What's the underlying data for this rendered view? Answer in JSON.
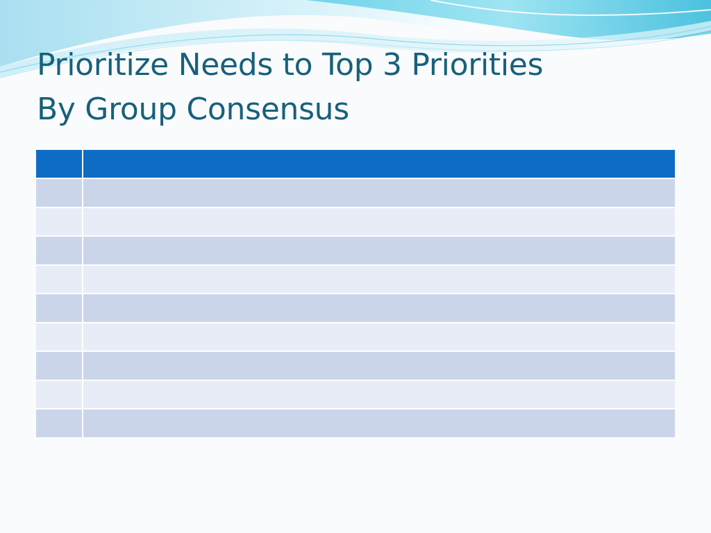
{
  "slide": {
    "title_line1": "Prioritize Needs to Top 3 Priorities",
    "title_line2": "By Group Consensus"
  },
  "table": {
    "columns": [
      "",
      ""
    ],
    "rows": [
      [
        "",
        ""
      ],
      [
        "",
        ""
      ],
      [
        "",
        ""
      ],
      [
        "",
        ""
      ],
      [
        "",
        ""
      ],
      [
        "",
        ""
      ],
      [
        "",
        ""
      ],
      [
        "",
        ""
      ],
      [
        "",
        ""
      ]
    ]
  },
  "colors": {
    "title_text": "#17607c",
    "header_fill": "#0e6cc4",
    "row_dark": "#cbd5ea",
    "row_light": "#e7ecf6",
    "wave_light": "#c9eef8",
    "wave_accent": "#4cc8e2"
  }
}
